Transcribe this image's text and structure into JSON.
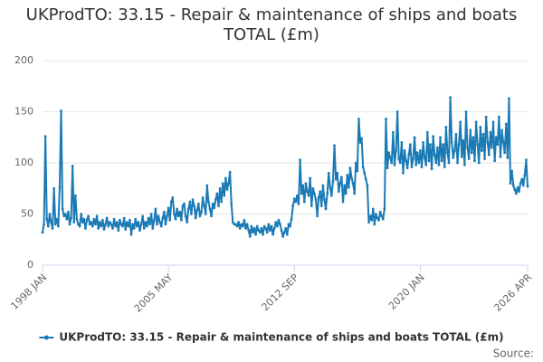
{
  "chart_data": {
    "type": "line",
    "title": "UKProdTO: 33.15 - Repair & maintenance of ships and boats TOTAL (£m)",
    "source": "Source:",
    "categories": [
      "1998 JAN",
      null,
      null,
      null,
      null,
      null,
      null,
      null,
      null,
      null,
      null,
      null,
      null,
      null,
      null,
      null,
      null,
      null,
      null,
      null,
      null,
      null,
      null,
      null,
      null,
      null,
      null,
      null,
      null,
      null,
      null,
      null,
      null,
      null,
      null,
      null,
      null,
      null,
      null,
      null,
      null,
      null,
      null,
      null,
      null,
      null,
      null,
      null,
      null,
      null,
      null,
      null,
      null,
      null,
      null,
      null,
      null,
      null,
      null,
      null,
      null,
      null,
      null,
      null,
      null,
      null,
      null,
      null,
      null,
      null,
      null,
      null,
      null,
      null,
      null,
      null,
      null,
      null,
      null,
      null,
      null,
      null,
      null,
      null,
      null,
      null,
      null,
      null,
      "2005 MAY",
      null,
      null,
      null,
      null,
      null,
      null,
      null,
      null,
      null,
      null,
      null,
      null,
      null,
      null,
      null,
      null,
      null,
      null,
      null,
      null,
      null,
      null,
      null,
      null,
      null,
      null,
      null,
      null,
      null,
      null,
      null,
      null,
      null,
      null,
      null,
      null,
      null,
      null,
      null,
      null,
      null,
      null,
      null,
      null,
      null,
      null,
      null,
      null,
      null,
      null,
      null,
      null,
      null,
      null,
      null,
      null,
      null,
      null,
      null,
      null,
      null,
      null,
      null,
      null,
      null,
      null,
      null,
      null,
      null,
      null,
      null,
      null,
      null,
      null,
      null,
      null,
      null,
      null,
      null,
      null,
      null,
      null,
      null,
      null,
      null,
      null,
      null,
      "2012 SEP",
      null,
      null,
      null,
      null,
      null,
      null,
      null,
      null,
      null,
      null,
      null,
      null,
      null,
      null,
      null,
      null,
      null,
      null,
      null,
      null,
      null,
      null,
      null,
      null,
      null,
      null,
      null,
      null,
      null,
      null,
      null,
      null,
      null,
      null,
      null,
      null,
      null,
      null,
      null,
      null,
      null,
      null,
      null,
      null,
      null,
      null,
      null,
      null,
      null,
      null,
      null,
      null,
      null,
      null,
      null,
      null,
      null,
      null,
      null,
      null,
      null,
      null,
      null,
      null,
      null,
      null,
      null,
      null,
      null,
      null,
      null,
      null,
      null,
      null,
      null,
      null,
      null,
      null,
      null,
      null,
      null,
      null,
      null,
      null,
      null,
      null,
      null,
      "2020 JAN",
      null,
      null,
      null,
      null,
      null,
      null,
      null,
      null,
      null,
      null,
      null,
      null,
      null,
      null,
      null,
      null,
      null,
      null,
      null,
      null,
      null,
      null,
      null,
      null,
      null,
      null,
      null,
      null,
      null,
      null,
      null,
      null,
      null,
      null,
      null,
      null,
      null,
      null,
      null,
      null,
      null,
      null,
      null,
      null,
      null,
      null,
      null,
      null,
      null,
      null,
      null,
      null,
      null,
      null,
      null,
      null,
      null,
      null,
      null,
      null,
      null,
      null,
      null,
      null,
      null,
      null,
      null,
      null,
      null,
      null,
      null,
      null,
      null,
      null,
      "2026 APR"
    ],
    "series": [
      {
        "name": "UKProdTO: 33.15 - Repair & maintenance of ships and boats TOTAL (£m)",
        "color": "#1a7ab5",
        "values": [
          32,
          40,
          126,
          45,
          38,
          50,
          42,
          36,
          75,
          40,
          45,
          38,
          76,
          151,
          55,
          48,
          50,
          45,
          52,
          40,
          46,
          97,
          42,
          68,
          45,
          40,
          38,
          50,
          42,
          45,
          36,
          44,
          48,
          40,
          42,
          38,
          45,
          40,
          48,
          36,
          42,
          38,
          44,
          35,
          40,
          46,
          38,
          42,
          40,
          36,
          45,
          38,
          42,
          34,
          44,
          40,
          38,
          46,
          35,
          42,
          38,
          44,
          30,
          40,
          36,
          45,
          38,
          42,
          34,
          40,
          48,
          36,
          42,
          38,
          46,
          40,
          50,
          36,
          44,
          55,
          40,
          48,
          42,
          38,
          46,
          52,
          40,
          48,
          56,
          44,
          62,
          66,
          50,
          45,
          55,
          48,
          52,
          44,
          58,
          60,
          48,
          42,
          55,
          62,
          50,
          64,
          58,
          46,
          54,
          60,
          48,
          52,
          66,
          58,
          50,
          78,
          62,
          55,
          48,
          60,
          56,
          64,
          70,
          58,
          75,
          62,
          80,
          68,
          85,
          74,
          80,
          91,
          60,
          42,
          40,
          40,
          38,
          42,
          36,
          40,
          38,
          44,
          36,
          40,
          34,
          28,
          38,
          32,
          36,
          30,
          38,
          34,
          32,
          36,
          30,
          38,
          36,
          32,
          40,
          34,
          38,
          30,
          36,
          42,
          38,
          44,
          40,
          34,
          28,
          32,
          36,
          30,
          40,
          38,
          45,
          58,
          65,
          62,
          68,
          60,
          103,
          70,
          78,
          62,
          80,
          72,
          68,
          85,
          58,
          75,
          70,
          64,
          48,
          66,
          72,
          58,
          78,
          64,
          55,
          70,
          90,
          76,
          68,
          82,
          117,
          84,
          90,
          72,
          80,
          86,
          62,
          78,
          70,
          88,
          76,
          95,
          85,
          80,
          70,
          100,
          92,
          143,
          120,
          124,
          96,
          90,
          84,
          78,
          42,
          48,
          44,
          55,
          40,
          50,
          46,
          44,
          52,
          48,
          45,
          55,
          143,
          95,
          110,
          105,
          100,
          130,
          98,
          112,
          150,
          104,
          100,
          120,
          90,
          112,
          102,
          95,
          108,
          118,
          96,
          104,
          125,
          98,
          110,
          100,
          112,
          96,
          120,
          105,
          98,
          130,
          102,
          118,
          94,
          126,
          108,
          100,
          115,
          98,
          125,
          102,
          118,
          96,
          135,
          110,
          100,
          164,
          120,
          105,
          112,
          128,
          100,
          118,
          140,
          106,
          122,
          98,
          150,
          115,
          104,
          132,
          110,
          125,
          102,
          140,
          118,
          100,
          135,
          112,
          128,
          104,
          145,
          120,
          108,
          130,
          115,
          140,
          102,
          125,
          118,
          145,
          106,
          132,
          120,
          110,
          138,
          105,
          163,
          80,
          92,
          78,
          74,
          70,
          76,
          72,
          80,
          84,
          78,
          88,
          103,
          77
        ]
      }
    ],
    "ylim": [
      0,
      200
    ],
    "yticks": [
      0,
      50,
      100,
      150,
      200
    ],
    "grid": true
  }
}
